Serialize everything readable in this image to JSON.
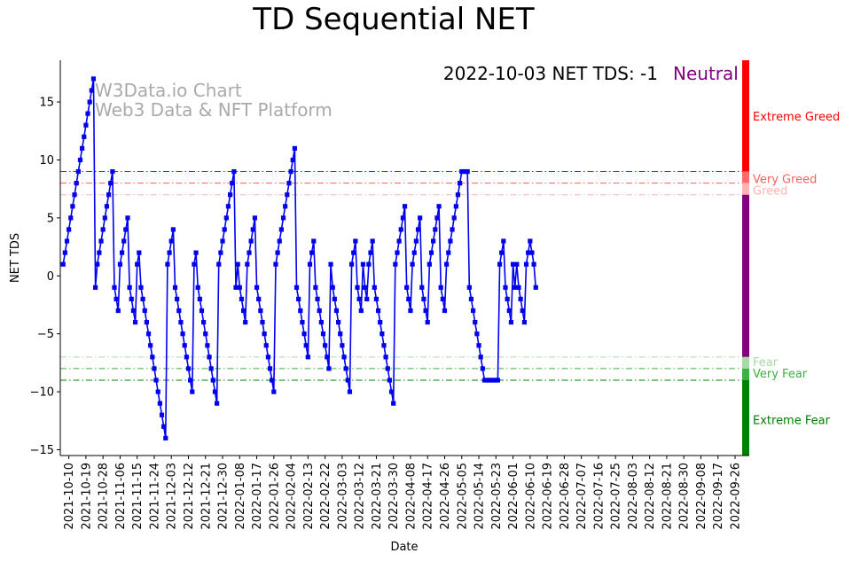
{
  "chart_data": {
    "type": "line",
    "title": "TD Sequential NET",
    "xlabel": "Date",
    "ylabel": "NET TDS",
    "ylim": [
      -15.5,
      18.6
    ],
    "yticks": [
      -15,
      -10,
      -5,
      0,
      5,
      10,
      15
    ],
    "xlim_days": [
      -1.5,
      361
    ],
    "x_start_date": "2021-10-07",
    "xtick_labels": [
      "2021-10-10",
      "2021-10-19",
      "2021-10-28",
      "2021-11-06",
      "2021-11-15",
      "2021-11-24",
      "2021-12-03",
      "2021-12-12",
      "2021-12-21",
      "2021-12-30",
      "2022-01-08",
      "2022-01-17",
      "2022-01-26",
      "2022-02-04",
      "2022-02-13",
      "2022-02-22",
      "2022-03-03",
      "2022-03-12",
      "2022-03-21",
      "2022-03-30",
      "2022-04-08",
      "2022-04-17",
      "2022-04-26",
      "2022-05-05",
      "2022-05-14",
      "2022-05-23",
      "2022-06-01",
      "2022-06-10",
      "2022-06-19",
      "2022-06-28",
      "2022-07-07",
      "2022-07-16",
      "2022-07-25",
      "2022-08-03",
      "2022-08-12",
      "2022-08-21",
      "2022-08-30",
      "2022-09-08",
      "2022-09-17",
      "2022-09-26"
    ],
    "xtick_day_offsets": [
      3,
      12,
      21,
      30,
      39,
      48,
      57,
      66,
      75,
      84,
      93,
      102,
      111,
      120,
      129,
      138,
      147,
      156,
      165,
      174,
      183,
      192,
      201,
      210,
      219,
      228,
      237,
      246,
      255,
      264,
      273,
      282,
      291,
      300,
      309,
      318,
      327,
      336,
      345,
      354
    ],
    "series": [
      {
        "name": "NET TDS",
        "color": "#0000ee",
        "values": [
          1,
          2,
          3,
          4,
          5,
          6,
          7,
          8,
          9,
          10,
          11,
          12,
          13,
          14,
          15,
          16,
          17,
          -1,
          1,
          2,
          3,
          4,
          5,
          6,
          7,
          8,
          9,
          -1,
          -2,
          -3,
          1,
          2,
          3,
          4,
          5,
          -1,
          -2,
          -3,
          -4,
          1,
          2,
          -1,
          -2,
          -3,
          -4,
          -5,
          -6,
          -7,
          -8,
          -9,
          -10,
          -11,
          -12,
          -13,
          -14,
          1,
          2,
          3,
          4,
          -1,
          -2,
          -3,
          -4,
          -5,
          -6,
          -7,
          -8,
          -9,
          -10,
          1,
          2,
          -1,
          -2,
          -3,
          -4,
          -5,
          -6,
          -7,
          -8,
          -9,
          -10,
          -11,
          1,
          2,
          3,
          4,
          5,
          6,
          7,
          8,
          9,
          -1,
          1,
          -1,
          -2,
          -3,
          -4,
          1,
          2,
          3,
          4,
          5,
          -1,
          -2,
          -3,
          -4,
          -5,
          -6,
          -7,
          -8,
          -9,
          -10,
          1,
          2,
          3,
          4,
          5,
          6,
          7,
          8,
          9,
          10,
          11,
          -1,
          -2,
          -3,
          -4,
          -5,
          -6,
          -7,
          1,
          2,
          3,
          -1,
          -2,
          -3,
          -4,
          -5,
          -6,
          -7,
          -8,
          1,
          -1,
          -2,
          -3,
          -4,
          -5,
          -6,
          -7,
          -8,
          -9,
          -10,
          1,
          2,
          3,
          -1,
          -2,
          -3,
          1,
          -1,
          -2,
          1,
          2,
          3,
          -1,
          -2,
          -3,
          -4,
          -5,
          -6,
          -7,
          -8,
          -9,
          -10,
          -11,
          1,
          2,
          3,
          4,
          5,
          6,
          -1,
          -2,
          -3,
          1,
          2,
          3,
          4,
          5,
          -1,
          -2,
          -3,
          -4,
          1,
          2,
          3,
          4,
          5,
          6,
          -1,
          -2,
          -3,
          1,
          2,
          3,
          4,
          5,
          6,
          7,
          8,
          9,
          9,
          9,
          9,
          -1,
          -2,
          -3,
          -4,
          -5,
          -6,
          -7,
          -8,
          -9,
          -9,
          -9,
          -9,
          -9,
          -9,
          -9,
          -9,
          1,
          2,
          3,
          -1,
          -2,
          -3,
          -4,
          1,
          -1,
          1,
          -1,
          -2,
          -3,
          -4,
          1,
          2,
          3,
          2,
          1,
          -1
        ]
      }
    ],
    "threshold_lines": [
      {
        "value": 9,
        "label": "Extreme Greed",
        "color": "#ff0000",
        "style": "dashdot"
      },
      {
        "value": 8,
        "label": "Very Greed",
        "color": "#ff5e5e",
        "style": "dashdot"
      },
      {
        "value": 7,
        "label": "Greed",
        "color": "#ffb3b3",
        "style": "dashdot"
      },
      {
        "value": -7,
        "label": "Fear",
        "color": "#a6dba6",
        "style": "dashdot"
      },
      {
        "value": -8,
        "label": "Very Fear",
        "color": "#40b040",
        "style": "dashdot"
      },
      {
        "value": -9,
        "label": "Extreme Fear",
        "color": "#008000",
        "style": "dashdot"
      }
    ],
    "side_bar": [
      {
        "from": 9,
        "to": 18.6,
        "color": "#ff0000"
      },
      {
        "from": 8,
        "to": 9,
        "color": "#ff6a6a"
      },
      {
        "from": 7,
        "to": 8,
        "color": "#ffb3b3"
      },
      {
        "from": -7,
        "to": 7,
        "color": "#800080"
      },
      {
        "from": -8,
        "to": -7,
        "color": "#a6dba6"
      },
      {
        "from": -9,
        "to": -8,
        "color": "#40b040"
      },
      {
        "from": -15.5,
        "to": -9,
        "color": "#008000"
      }
    ],
    "zone_labels": [
      {
        "text": "Extreme Greed",
        "value": 13.8,
        "color": "#ff0000"
      },
      {
        "text": "Very Greed",
        "value": 8.4,
        "color": "#ff5e5e"
      },
      {
        "text": "Greed",
        "value": 7.4,
        "color": "#ffb3b3"
      },
      {
        "text": "Fear",
        "value": -7.4,
        "color": "#a6dba6"
      },
      {
        "text": "Very Fear",
        "value": -8.4,
        "color": "#40b040"
      },
      {
        "text": "Extreme Fear",
        "value": -12.4,
        "color": "#008000"
      }
    ],
    "annotation": {
      "date": "2022-10-03",
      "text": "2022-10-03 NET TDS: -1",
      "status": "Neutral",
      "status_color": "#800080"
    },
    "watermark": [
      "W3Data.io Chart",
      "Web3 Data & NFT Platform"
    ]
  }
}
